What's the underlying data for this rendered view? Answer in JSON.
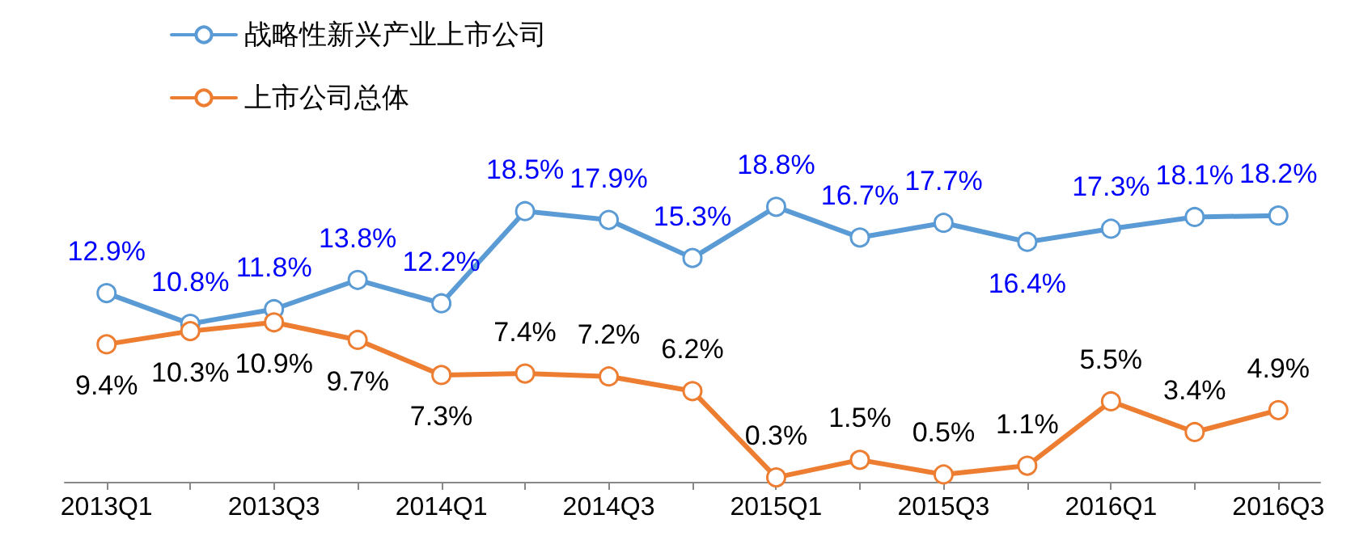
{
  "chart_data": {
    "type": "line",
    "categories": [
      "2013Q1",
      null,
      "2013Q3",
      null,
      "2014Q1",
      null,
      "2014Q3",
      null,
      "2015Q1",
      null,
      "2015Q3",
      null,
      "2016Q1",
      null,
      "2016Q3"
    ],
    "series": [
      {
        "name": "战略性新兴产业上市公司",
        "color": "#5b9bd5",
        "values": [
          12.9,
          10.8,
          11.8,
          13.8,
          12.2,
          18.5,
          17.9,
          15.3,
          18.8,
          16.7,
          17.7,
          16.4,
          17.3,
          18.1,
          18.2
        ],
        "value_labels": [
          "12.9%",
          "10.8%",
          "11.8%",
          "13.8%",
          "12.2%",
          "18.5%",
          "17.9%",
          "15.3%",
          "18.8%",
          "16.7%",
          "17.7%",
          "16.4%",
          "17.3%",
          "18.1%",
          "18.2%"
        ]
      },
      {
        "name": "上市公司总体",
        "color": "#ed7d31",
        "values": [
          9.4,
          10.3,
          10.9,
          9.7,
          7.3,
          7.4,
          7.2,
          6.2,
          0.3,
          1.5,
          0.5,
          1.1,
          5.5,
          3.4,
          4.9
        ],
        "value_labels": [
          "9.4%",
          "10.3%",
          "10.9%",
          "9.7%",
          "7.3%",
          "7.4%",
          "7.2%",
          "6.2%",
          "0.3%",
          "1.5%",
          "0.5%",
          "1.1%",
          "5.5%",
          "3.4%",
          "4.9%"
        ]
      }
    ],
    "legend": "top left",
    "marker": "circle",
    "line_style": "solid",
    "grid": false,
    "tick_labels": "x"
  }
}
